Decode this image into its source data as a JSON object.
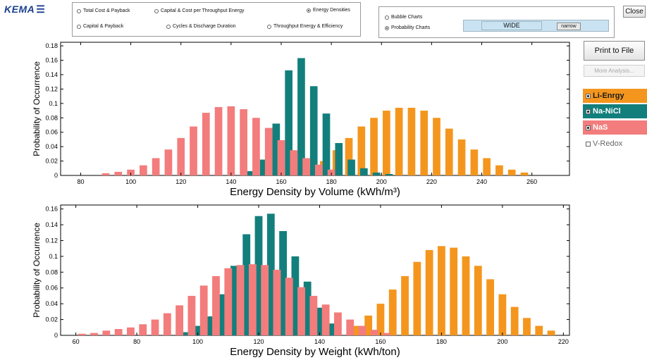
{
  "app": {
    "logo_text": "KEMA",
    "close_label": "Close"
  },
  "view_options": [
    {
      "label": "Total Cost & Payback",
      "selected": false
    },
    {
      "label": "Capital & Cost per Throughput Energy",
      "selected": false
    },
    {
      "label": "Energy Densities",
      "selected": true
    },
    {
      "label": "Capital & Payback",
      "selected": false
    },
    {
      "label": "Cycles & Discharge Duration",
      "selected": false
    },
    {
      "label": "Throughput Energy & Efficiency",
      "selected": false
    }
  ],
  "chart_type_options": [
    {
      "label": "Bubble Charts",
      "selected": false
    },
    {
      "label": "Probability Charts",
      "selected": true
    }
  ],
  "width_toggle": {
    "wide_label": "WIDE",
    "narrow_label": "narrow"
  },
  "actions": {
    "print_label": "Print to File",
    "more_label": "More Analysis..."
  },
  "legend": [
    {
      "label": "Li-Enrgy",
      "color": "#f4961e",
      "checked": true
    },
    {
      "label": "Na-NiCl",
      "color": "#137f7c",
      "checked": true
    },
    {
      "label": "NaS",
      "color": "#f37c7c",
      "checked": true
    },
    {
      "label": "V-Redox",
      "color": "",
      "checked": false
    }
  ],
  "chart_data": [
    {
      "type": "bar",
      "xlabel": "Energy Density by Volume (kWh/m³)",
      "ylabel": "Probability of Occurrence",
      "xlim": [
        72,
        275
      ],
      "ylim": [
        0,
        0.185
      ],
      "xticks": [
        80,
        100,
        120,
        140,
        160,
        180,
        200,
        220,
        240,
        260
      ],
      "yticks": [
        0,
        0.02,
        0.04,
        0.06,
        0.08,
        0.1,
        0.12,
        0.14,
        0.16,
        0.18
      ],
      "series": [
        {
          "name": "Li-Enrgy",
          "color": "#f4961e",
          "bar_width": 3,
          "x": [
            172,
            177,
            182,
            187,
            192,
            197,
            202,
            207,
            212,
            217,
            222,
            227,
            232,
            237,
            242,
            247,
            252,
            257
          ],
          "y": [
            0.008,
            0.02,
            0.035,
            0.052,
            0.068,
            0.08,
            0.09,
            0.094,
            0.094,
            0.09,
            0.08,
            0.065,
            0.05,
            0.036,
            0.024,
            0.014,
            0.008,
            0.004
          ]
        },
        {
          "name": "Na-NiCl",
          "color": "#137f7c",
          "bar_width": 3,
          "x": [
            148,
            153,
            158,
            163,
            168,
            173,
            178,
            183,
            188,
            193,
            198,
            203
          ],
          "y": [
            0.006,
            0.022,
            0.072,
            0.146,
            0.163,
            0.124,
            0.086,
            0.045,
            0.022,
            0.01,
            0.004,
            0.002
          ]
        },
        {
          "name": "NaS",
          "color": "#f37c7c",
          "bar_width": 3,
          "x": [
            90,
            95,
            100,
            105,
            110,
            115,
            120,
            125,
            130,
            135,
            140,
            145,
            150,
            155,
            160,
            165,
            170,
            175,
            180
          ],
          "y": [
            0.003,
            0.005,
            0.008,
            0.014,
            0.024,
            0.036,
            0.052,
            0.068,
            0.087,
            0.095,
            0.096,
            0.092,
            0.08,
            0.066,
            0.049,
            0.035,
            0.024,
            0.015,
            0.008
          ]
        }
      ]
    },
    {
      "type": "bar",
      "xlabel": "Energy Density by Weight (kWh/ton)",
      "ylabel": "Probability of Occurrence",
      "xlim": [
        55,
        222
      ],
      "ylim": [
        0,
        0.165
      ],
      "xticks": [
        60,
        80,
        100,
        120,
        140,
        160,
        180,
        200,
        220
      ],
      "yticks": [
        0,
        0.02,
        0.04,
        0.06,
        0.08,
        0.1,
        0.12,
        0.14,
        0.16
      ],
      "series": [
        {
          "name": "Li-Enrgy",
          "color": "#f4961e",
          "bar_width": 2.5,
          "x": [
            152,
            156,
            160,
            164,
            168,
            172,
            176,
            180,
            184,
            188,
            192,
            196,
            200,
            204,
            208,
            212,
            216
          ],
          "y": [
            0.012,
            0.025,
            0.04,
            0.058,
            0.075,
            0.093,
            0.108,
            0.113,
            0.111,
            0.1,
            0.088,
            0.071,
            0.052,
            0.036,
            0.022,
            0.012,
            0.006
          ]
        },
        {
          "name": "Na-NiCl",
          "color": "#137f7c",
          "bar_width": 2.5,
          "x": [
            96,
            100,
            104,
            108,
            112,
            116,
            120,
            124,
            128,
            132,
            136,
            140,
            144
          ],
          "y": [
            0.004,
            0.012,
            0.024,
            0.052,
            0.088,
            0.128,
            0.151,
            0.154,
            0.132,
            0.1,
            0.068,
            0.035,
            0.015
          ]
        },
        {
          "name": "NaS",
          "color": "#f37c7c",
          "bar_width": 2.5,
          "x": [
            62,
            66,
            70,
            74,
            78,
            82,
            86,
            90,
            94,
            98,
            102,
            106,
            110,
            114,
            118,
            122,
            126,
            130,
            134,
            138,
            142,
            146,
            150,
            154,
            158,
            162
          ],
          "y": [
            0.002,
            0.003,
            0.006,
            0.008,
            0.01,
            0.014,
            0.02,
            0.028,
            0.038,
            0.05,
            0.063,
            0.075,
            0.085,
            0.089,
            0.09,
            0.089,
            0.083,
            0.073,
            0.061,
            0.05,
            0.039,
            0.029,
            0.02,
            0.012,
            0.007,
            0.003
          ]
        }
      ]
    }
  ]
}
